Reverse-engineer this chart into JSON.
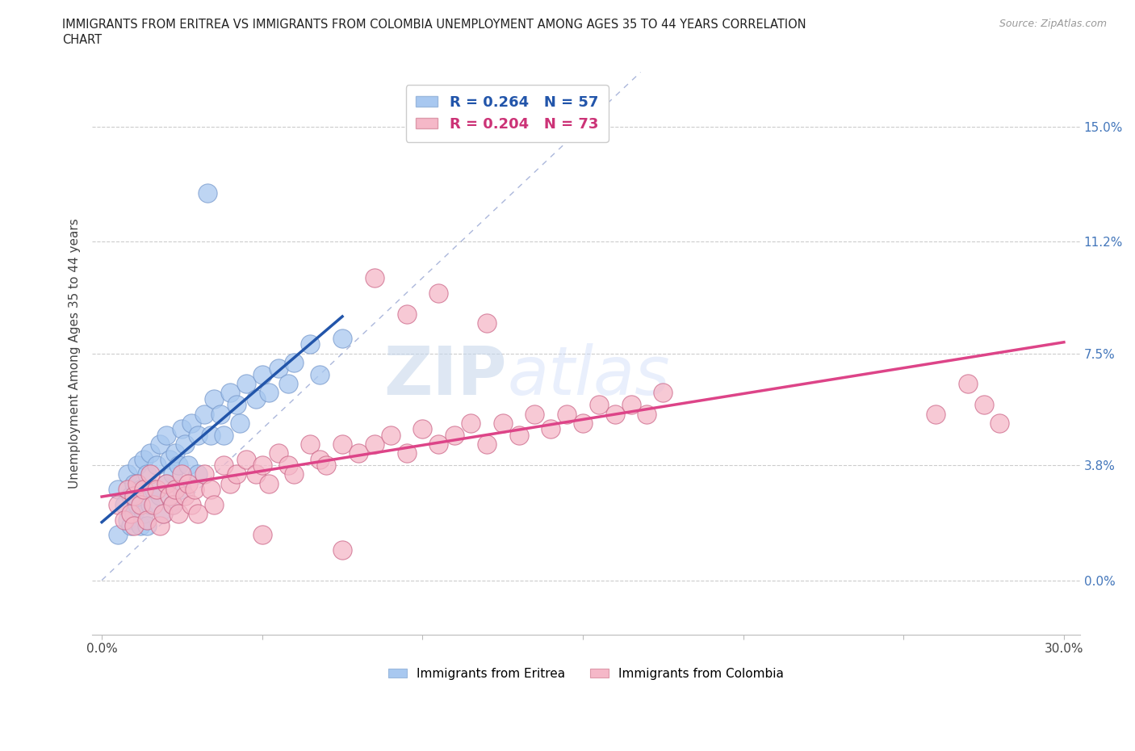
{
  "title_line1": "IMMIGRANTS FROM ERITREA VS IMMIGRANTS FROM COLOMBIA UNEMPLOYMENT AMONG AGES 35 TO 44 YEARS CORRELATION",
  "title_line2": "CHART",
  "source_text": "Source: ZipAtlas.com",
  "ylabel": "Unemployment Among Ages 35 to 44 years",
  "xlim": [
    -0.003,
    0.305
  ],
  "ylim": [
    -0.018,
    0.168
  ],
  "yticks": [
    0.0,
    0.038,
    0.075,
    0.112,
    0.15
  ],
  "ytick_labels": [
    "0.0%",
    "3.8%",
    "7.5%",
    "11.2%",
    "15.0%"
  ],
  "xtick_positions": [
    0.0,
    0.05,
    0.1,
    0.15,
    0.2,
    0.25,
    0.3
  ],
  "xtick_labels_sparse": [
    "0.0%",
    "",
    "",
    "",
    "",
    "",
    "30.0%"
  ],
  "legend_eritrea_R": "0.264",
  "legend_eritrea_N": "57",
  "legend_colombia_R": "0.204",
  "legend_colombia_N": "73",
  "eritrea_color": "#a8c8f0",
  "colombia_color": "#f5b8c8",
  "eritrea_line_color": "#2255aa",
  "colombia_line_color": "#dd4488",
  "diagonal_line_color": "#8899cc",
  "watermark_zip": "ZIP",
  "watermark_atlas": "atlas",
  "eritrea_x": [
    0.005,
    0.005,
    0.007,
    0.008,
    0.008,
    0.009,
    0.009,
    0.01,
    0.01,
    0.011,
    0.011,
    0.012,
    0.012,
    0.013,
    0.013,
    0.014,
    0.014,
    0.015,
    0.015,
    0.016,
    0.017,
    0.018,
    0.018,
    0.019,
    0.02,
    0.02,
    0.021,
    0.022,
    0.022,
    0.023,
    0.024,
    0.025,
    0.025,
    0.026,
    0.027,
    0.028,
    0.03,
    0.03,
    0.032,
    0.034,
    0.035,
    0.037,
    0.038,
    0.04,
    0.042,
    0.043,
    0.045,
    0.048,
    0.05,
    0.052,
    0.055,
    0.058,
    0.06,
    0.065,
    0.068,
    0.075,
    0.033
  ],
  "eritrea_y": [
    0.03,
    0.015,
    0.025,
    0.035,
    0.02,
    0.028,
    0.018,
    0.032,
    0.022,
    0.038,
    0.025,
    0.03,
    0.018,
    0.04,
    0.022,
    0.035,
    0.018,
    0.042,
    0.025,
    0.03,
    0.038,
    0.045,
    0.028,
    0.022,
    0.048,
    0.032,
    0.04,
    0.035,
    0.025,
    0.042,
    0.038,
    0.05,
    0.03,
    0.045,
    0.038,
    0.052,
    0.048,
    0.035,
    0.055,
    0.048,
    0.06,
    0.055,
    0.048,
    0.062,
    0.058,
    0.052,
    0.065,
    0.06,
    0.068,
    0.062,
    0.07,
    0.065,
    0.072,
    0.078,
    0.068,
    0.08,
    0.128
  ],
  "colombia_x": [
    0.005,
    0.007,
    0.008,
    0.009,
    0.01,
    0.01,
    0.011,
    0.012,
    0.013,
    0.014,
    0.015,
    0.016,
    0.017,
    0.018,
    0.019,
    0.02,
    0.021,
    0.022,
    0.023,
    0.024,
    0.025,
    0.026,
    0.027,
    0.028,
    0.029,
    0.03,
    0.032,
    0.034,
    0.035,
    0.038,
    0.04,
    0.042,
    0.045,
    0.048,
    0.05,
    0.052,
    0.055,
    0.058,
    0.06,
    0.065,
    0.068,
    0.07,
    0.075,
    0.08,
    0.085,
    0.09,
    0.095,
    0.1,
    0.105,
    0.11,
    0.115,
    0.12,
    0.125,
    0.13,
    0.135,
    0.14,
    0.145,
    0.15,
    0.155,
    0.16,
    0.165,
    0.17,
    0.175,
    0.085,
    0.095,
    0.105,
    0.12,
    0.26,
    0.27,
    0.275,
    0.28,
    0.05,
    0.075
  ],
  "colombia_y": [
    0.025,
    0.02,
    0.03,
    0.022,
    0.028,
    0.018,
    0.032,
    0.025,
    0.03,
    0.02,
    0.035,
    0.025,
    0.03,
    0.018,
    0.022,
    0.032,
    0.028,
    0.025,
    0.03,
    0.022,
    0.035,
    0.028,
    0.032,
    0.025,
    0.03,
    0.022,
    0.035,
    0.03,
    0.025,
    0.038,
    0.032,
    0.035,
    0.04,
    0.035,
    0.038,
    0.032,
    0.042,
    0.038,
    0.035,
    0.045,
    0.04,
    0.038,
    0.045,
    0.042,
    0.045,
    0.048,
    0.042,
    0.05,
    0.045,
    0.048,
    0.052,
    0.045,
    0.052,
    0.048,
    0.055,
    0.05,
    0.055,
    0.052,
    0.058,
    0.055,
    0.058,
    0.055,
    0.062,
    0.1,
    0.088,
    0.095,
    0.085,
    0.055,
    0.065,
    0.058,
    0.052,
    0.015,
    0.01
  ]
}
